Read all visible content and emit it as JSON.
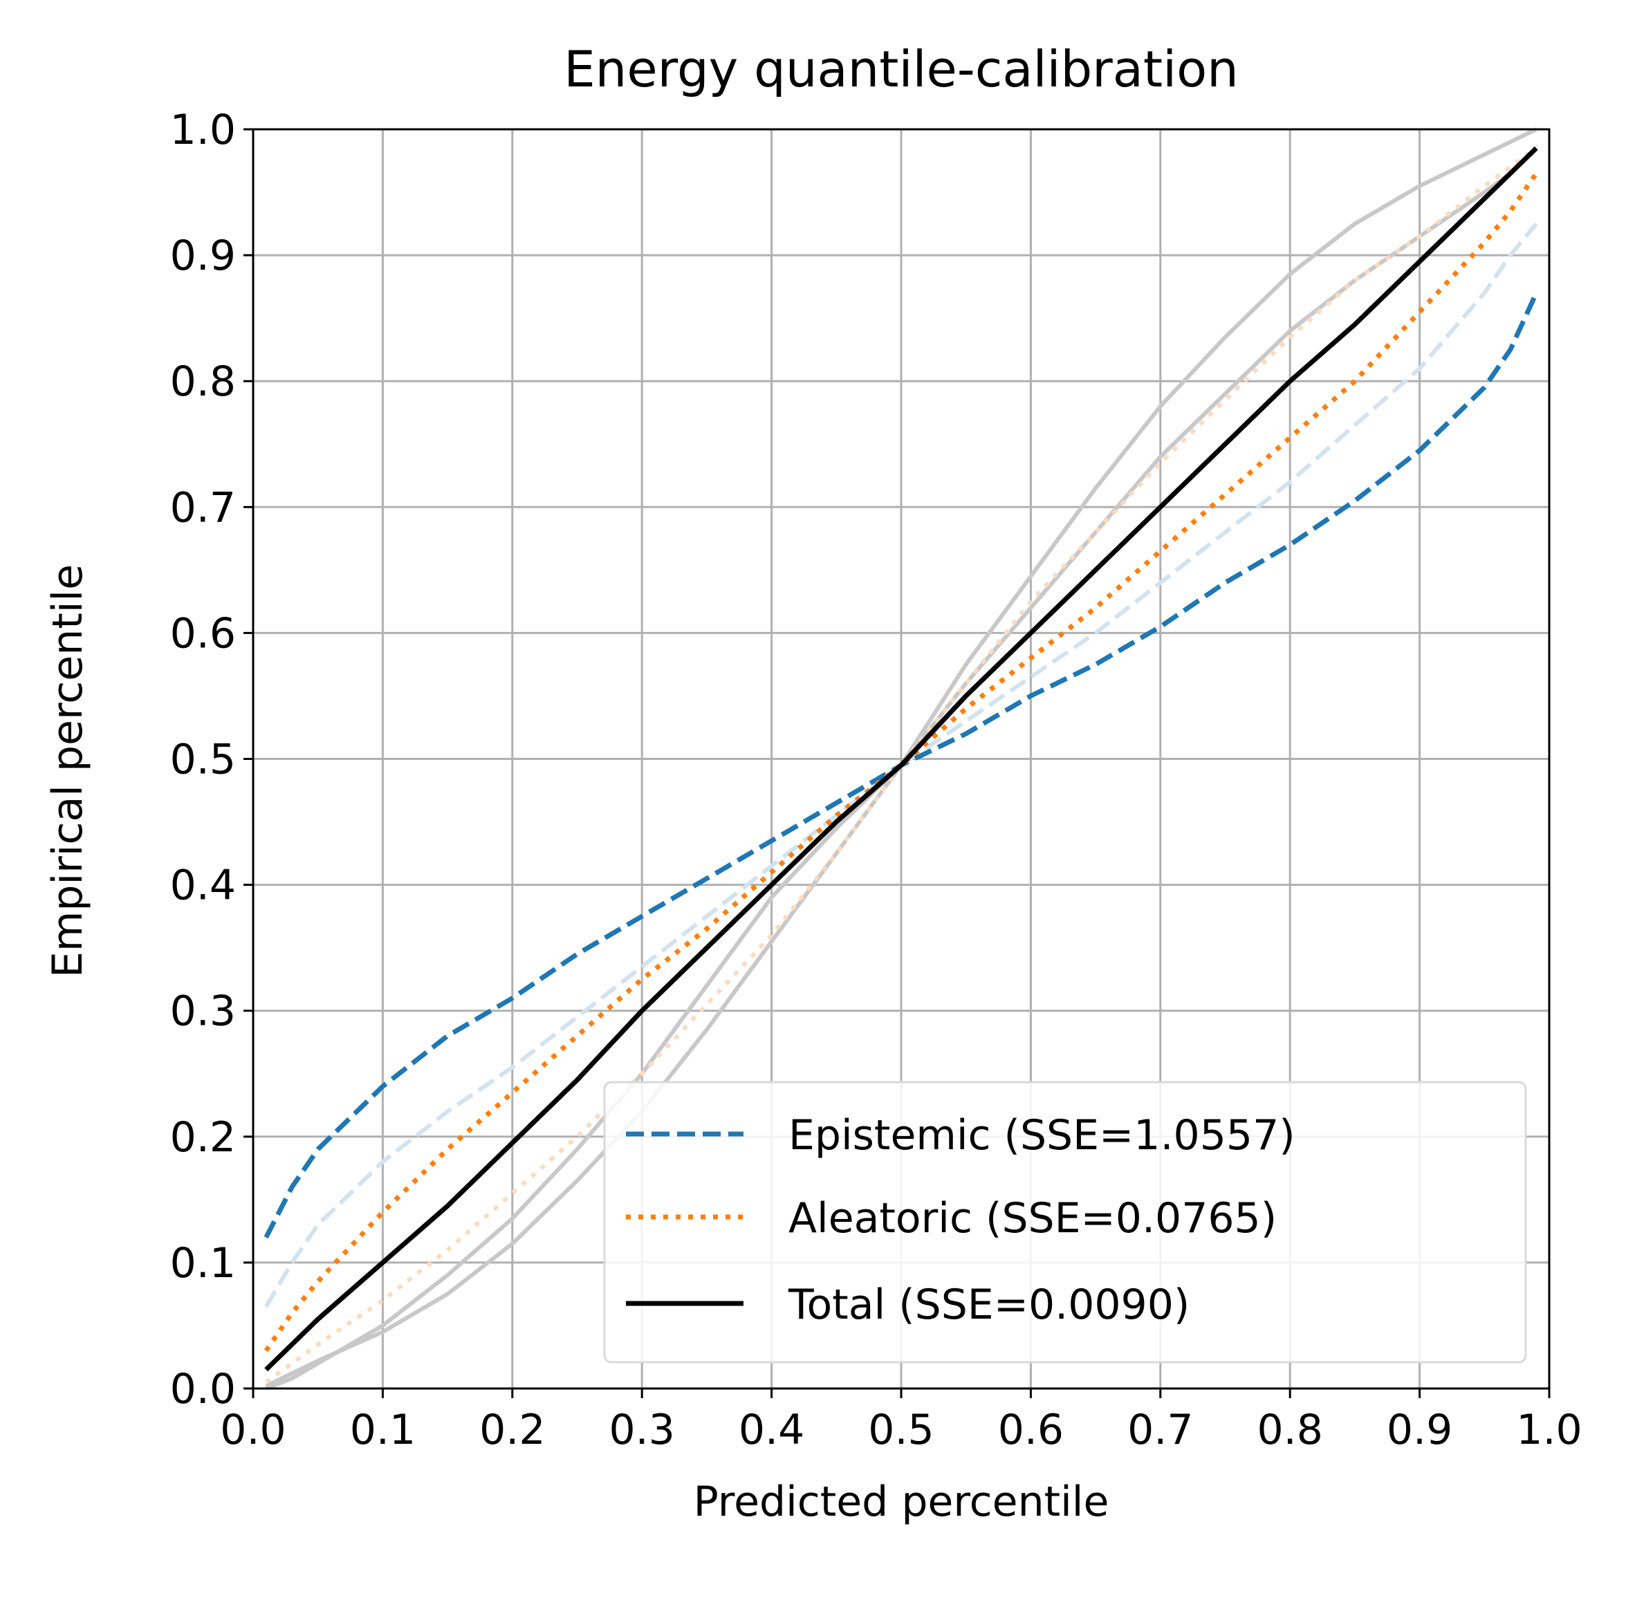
{
  "chart_data": {
    "type": "line",
    "title": "Energy quantile-calibration",
    "xlabel": "Predicted percentile",
    "ylabel": "Empirical percentile",
    "xlim": [
      0.0,
      1.0
    ],
    "ylim": [
      0.0,
      1.0
    ],
    "xticks": [
      "0.0",
      "0.1",
      "0.2",
      "0.3",
      "0.4",
      "0.5",
      "0.6",
      "0.7",
      "0.8",
      "0.9",
      "1.0"
    ],
    "yticks": [
      "0.0",
      "0.1",
      "0.2",
      "0.3",
      "0.4",
      "0.5",
      "0.6",
      "0.7",
      "0.8",
      "0.9",
      "1.0"
    ],
    "grid": true,
    "legend_position": "lower-right",
    "x": [
      0.01,
      0.03,
      0.05,
      0.1,
      0.15,
      0.2,
      0.25,
      0.3,
      0.35,
      0.4,
      0.45,
      0.5,
      0.55,
      0.6,
      0.65,
      0.7,
      0.75,
      0.8,
      0.85,
      0.9,
      0.95,
      0.97,
      0.99
    ],
    "series": [
      {
        "name": "Epistemic (SSE=1.0557)",
        "color": "#1f77b4",
        "style": "dashed",
        "y": [
          0.12,
          0.16,
          0.19,
          0.24,
          0.28,
          0.31,
          0.345,
          0.375,
          0.405,
          0.435,
          0.465,
          0.495,
          0.52,
          0.55,
          0.575,
          0.605,
          0.64,
          0.67,
          0.705,
          0.745,
          0.795,
          0.825,
          0.87
        ]
      },
      {
        "name": "Aleatoric (SSE=0.0765)",
        "color": "#ff7f0e",
        "style": "dotted",
        "y": [
          0.03,
          0.06,
          0.085,
          0.14,
          0.19,
          0.235,
          0.28,
          0.325,
          0.365,
          0.41,
          0.455,
          0.495,
          0.54,
          0.58,
          0.62,
          0.665,
          0.71,
          0.755,
          0.8,
          0.855,
          0.91,
          0.935,
          0.965
        ]
      },
      {
        "name": "Total (SSE=0.0090)",
        "color": "#000000",
        "style": "solid",
        "y": [
          0.015,
          0.035,
          0.055,
          0.1,
          0.145,
          0.195,
          0.245,
          0.3,
          0.35,
          0.4,
          0.45,
          0.495,
          0.55,
          0.6,
          0.65,
          0.7,
          0.75,
          0.8,
          0.845,
          0.895,
          0.945,
          0.965,
          0.985
        ]
      }
    ],
    "reference_curves": [
      {
        "color": "#c8c8c8",
        "style": "solid",
        "y": [
          0.002,
          0.012,
          0.022,
          0.045,
          0.075,
          0.115,
          0.165,
          0.22,
          0.285,
          0.355,
          0.425,
          0.495,
          0.575,
          0.645,
          0.715,
          0.78,
          0.835,
          0.885,
          0.925,
          0.955,
          0.98,
          0.99,
          1.0
        ]
      },
      {
        "color": "#c8c8c8",
        "style": "solid",
        "y": [
          0.0,
          0.008,
          0.02,
          0.05,
          0.09,
          0.135,
          0.19,
          0.25,
          0.32,
          0.39,
          0.445,
          0.495,
          0.56,
          0.62,
          0.68,
          0.74,
          0.79,
          0.84,
          0.88,
          0.915,
          0.95,
          0.965,
          0.985
        ]
      },
      {
        "color": "#fddbbf",
        "style": "dotted",
        "y": [
          0.005,
          0.02,
          0.035,
          0.07,
          0.11,
          0.155,
          0.2,
          0.25,
          0.305,
          0.36,
          0.425,
          0.495,
          0.56,
          0.625,
          0.68,
          0.735,
          0.785,
          0.835,
          0.88,
          0.915,
          0.955,
          0.97,
          0.985
        ]
      },
      {
        "color": "#d2e2ef",
        "style": "dashed",
        "y": [
          0.065,
          0.1,
          0.13,
          0.18,
          0.22,
          0.255,
          0.295,
          0.335,
          0.375,
          0.415,
          0.455,
          0.495,
          0.53,
          0.565,
          0.6,
          0.64,
          0.68,
          0.72,
          0.765,
          0.81,
          0.87,
          0.9,
          0.925
        ]
      }
    ]
  }
}
